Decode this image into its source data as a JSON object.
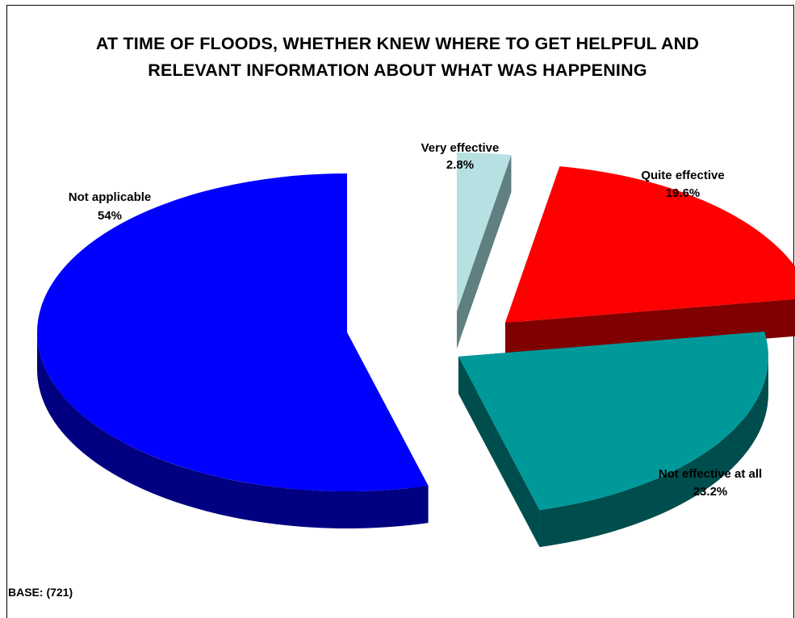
{
  "chart_data": {
    "type": "pie",
    "style": "3d-exploded",
    "title_lines": [
      "AT TIME OF FLOODS, WHETHER KNEW WHERE TO GET HELPFUL AND",
      "RELEVANT INFORMATION ABOUT WHAT WAS HAPPENING"
    ],
    "slices": [
      {
        "label": "Very effective",
        "value": 2.8,
        "display": "2.8%",
        "color": "#b7e0e2",
        "side_color": "#5f7f80"
      },
      {
        "label": "Quite effective",
        "value": 19.6,
        "display": "19.6%",
        "color": "#ff0000",
        "side_color": "#7f0000"
      },
      {
        "label": "Not effective at all",
        "value": 23.2,
        "display": "23.2%",
        "color": "#009999",
        "side_color": "#004d4d"
      },
      {
        "label": "Not applicable",
        "value": 54,
        "display": "54%",
        "color": "#0000ff",
        "side_color": "#000080"
      }
    ],
    "footnote": "BASE: (721)"
  }
}
